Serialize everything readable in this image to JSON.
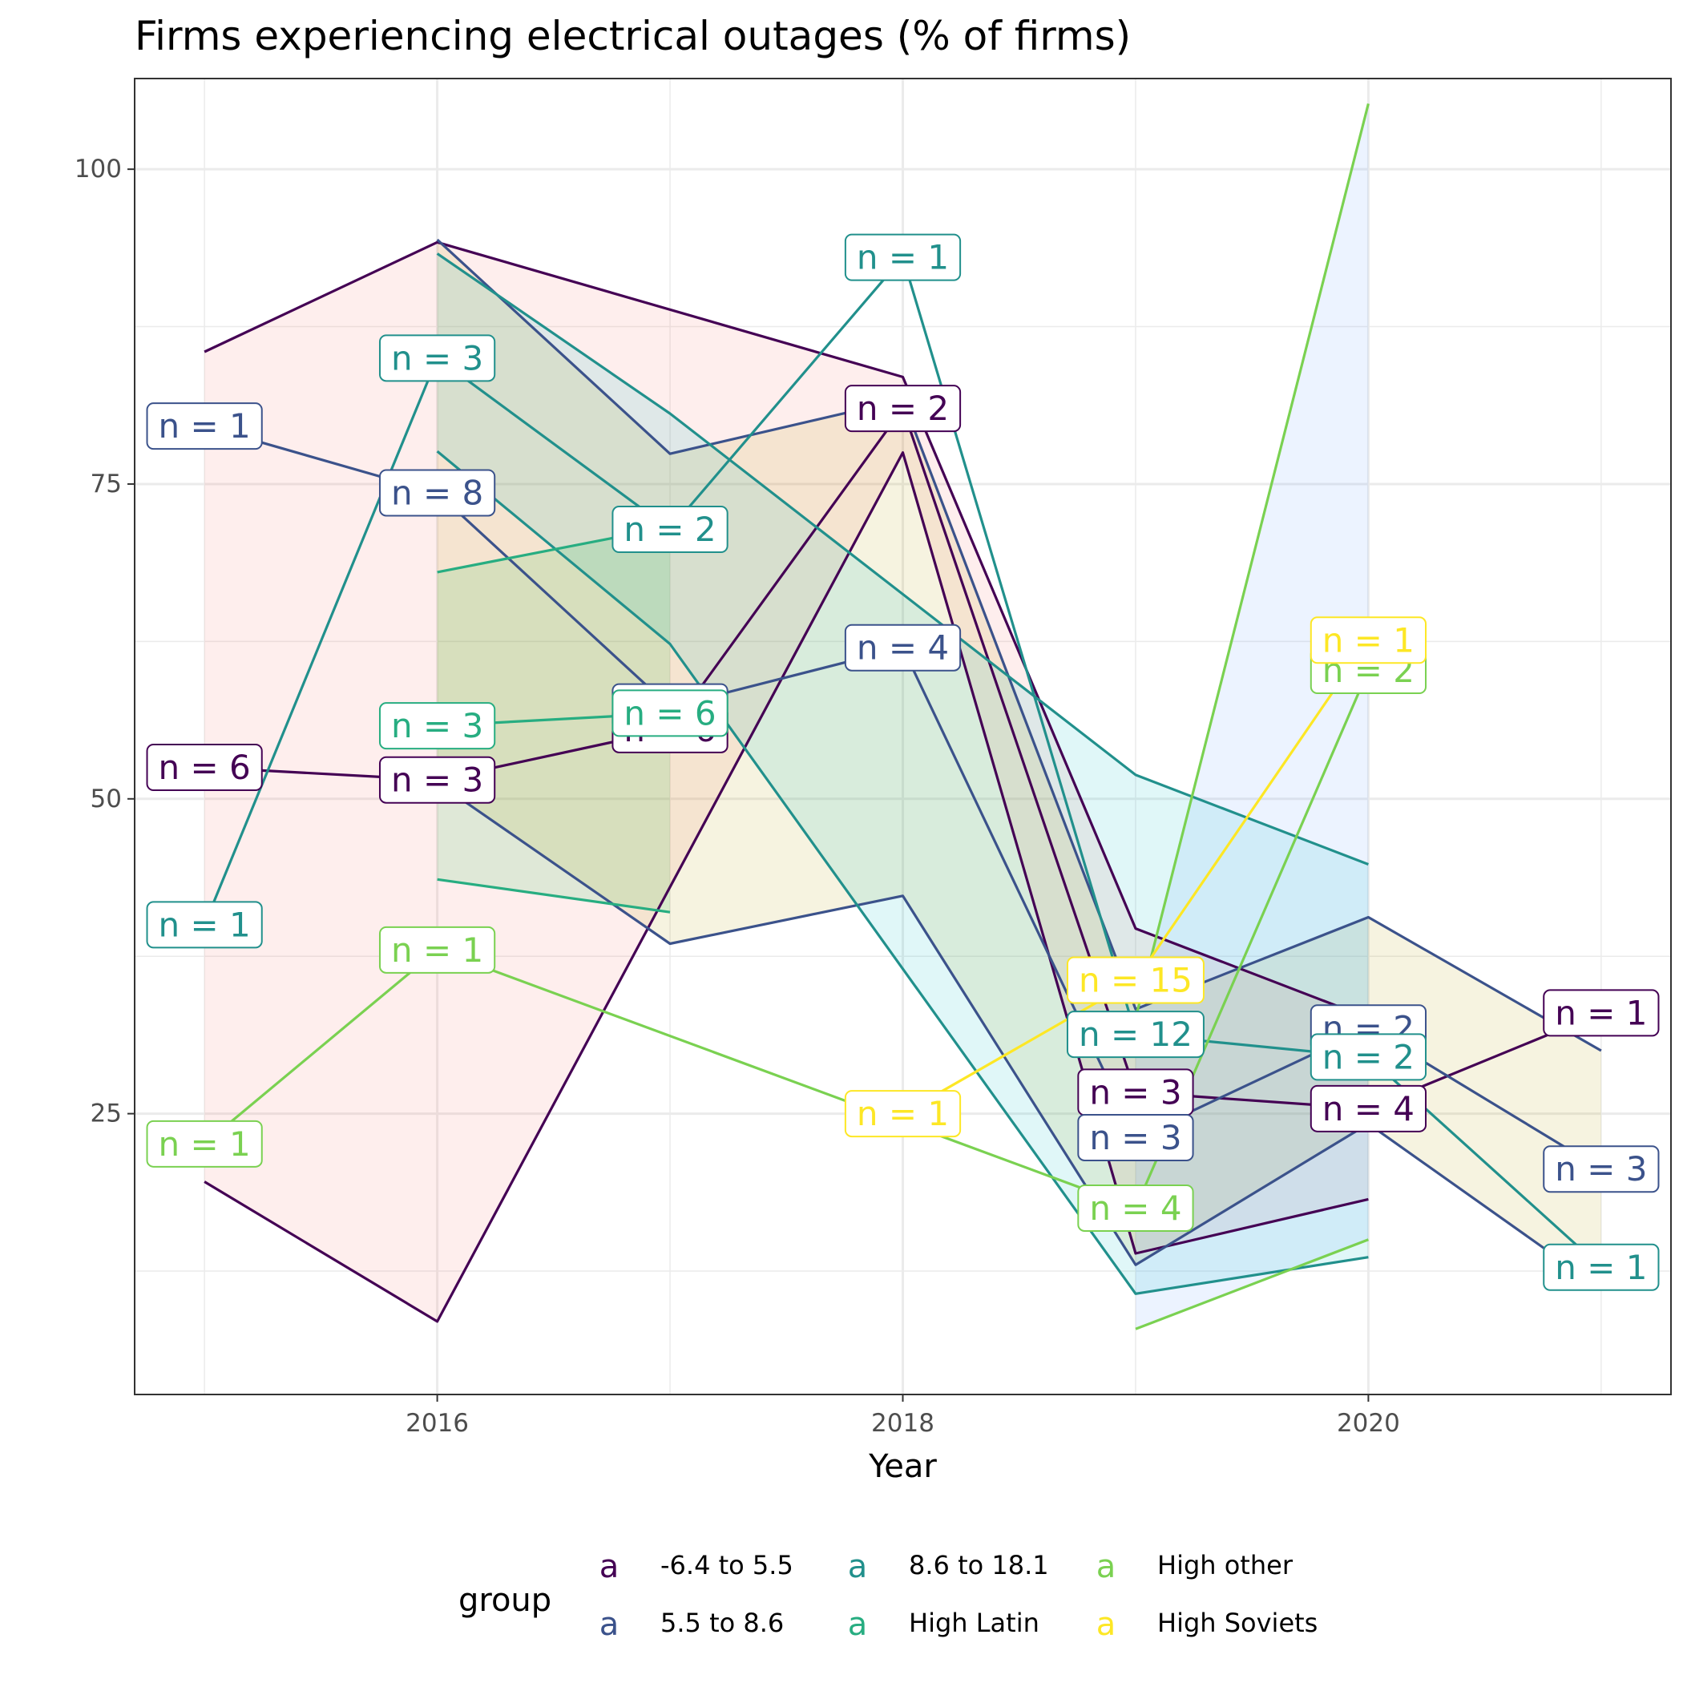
{
  "chart_data": {
    "type": "line",
    "title": "Firms experiencing electrical outages (% of firms)",
    "xlabel": "Year",
    "ylabel": "",
    "xlim": [
      2014.7,
      2021.3
    ],
    "ylim": [
      2.7,
      107.2
    ],
    "x_ticks": [
      2016,
      2018,
      2020
    ],
    "y_ticks": [
      25,
      50,
      75,
      100
    ],
    "grid": true,
    "legend": {
      "title": "group",
      "position": "bottom",
      "key_glyph": "a"
    },
    "series": [
      {
        "name": "-6.4 to 5.5",
        "color": "#440154",
        "points": [
          {
            "x": 2015,
            "y": 52.5,
            "label": "n = 6"
          },
          {
            "x": 2016,
            "y": 51.5,
            "label": "n = 3"
          },
          {
            "x": 2017,
            "y": 55.5,
            "label": "n = 6"
          },
          {
            "x": 2018,
            "y": 81,
            "label": "n = 2"
          },
          {
            "x": 2019,
            "y": 26.7,
            "label": "n = 3"
          },
          {
            "x": 2020,
            "y": 25.4,
            "label": "n = 4"
          },
          {
            "x": 2021,
            "y": 33,
            "label": "n = 1"
          }
        ],
        "lower": [
          {
            "x": 2015,
            "y": 19.6
          },
          {
            "x": 2016,
            "y": 8.5
          },
          {
            "x": 2018,
            "y": 77.5
          },
          {
            "x": 2019,
            "y": 13.9
          },
          {
            "x": 2020,
            "y": 18.2
          }
        ],
        "upper": [
          {
            "x": 2015,
            "y": 85.5
          },
          {
            "x": 2016,
            "y": 94.2
          },
          {
            "x": 2018,
            "y": 83.5
          },
          {
            "x": 2019,
            "y": 39.7
          },
          {
            "x": 2020,
            "y": 32.6
          }
        ],
        "fill": "#f8766d"
      },
      {
        "name": "5.5 to 8.6",
        "color": "#3b528b",
        "points": [
          {
            "x": 2015,
            "y": 79.6,
            "label": "n = 1"
          },
          {
            "x": 2016,
            "y": 74.3,
            "label": "n = 8"
          },
          {
            "x": 2017,
            "y": 57.3,
            "label": "n = 3"
          },
          {
            "x": 2018,
            "y": 62,
            "label": "n = 4"
          },
          {
            "x": 2019,
            "y": 23.1,
            "label": "n = 3"
          },
          {
            "x": 2020,
            "y": 31.8,
            "label": "n = 2"
          },
          {
            "x": 2021,
            "y": 20.6,
            "label": "n = 3"
          }
        ],
        "lower": [
          {
            "x": 2016,
            "y": 51.3
          },
          {
            "x": 2017,
            "y": 38.5
          },
          {
            "x": 2018,
            "y": 42.3
          },
          {
            "x": 2019,
            "y": 13
          },
          {
            "x": 2020,
            "y": 24.2
          },
          {
            "x": 2021,
            "y": 11.1
          }
        ],
        "upper": [
          {
            "x": 2016,
            "y": 94.4
          },
          {
            "x": 2017,
            "y": 77.4
          },
          {
            "x": 2018,
            "y": 81.7
          },
          {
            "x": 2019,
            "y": 33.3
          },
          {
            "x": 2020,
            "y": 40.6
          },
          {
            "x": 2021,
            "y": 30
          }
        ],
        "fill": "#b79f00"
      },
      {
        "name": "8.6 to 18.1",
        "color": "#21908c",
        "points": [
          {
            "x": 2015,
            "y": 40,
            "label": "n = 1"
          },
          {
            "x": 2016,
            "y": 85,
            "label": "n = 3"
          },
          {
            "x": 2017,
            "y": 71.4,
            "label": "n = 2"
          },
          {
            "x": 2018,
            "y": 93,
            "label": "n = 1"
          },
          {
            "x": 2019,
            "y": 31.3,
            "label": "n = 12"
          },
          {
            "x": 2020,
            "y": 29.5,
            "label": "n = 2"
          },
          {
            "x": 2021,
            "y": 12.8,
            "label": "n = 1"
          }
        ],
        "lower": [
          {
            "x": 2016,
            "y": 77.6
          },
          {
            "x": 2017,
            "y": 62.3
          },
          {
            "x": 2019,
            "y": 10.7
          },
          {
            "x": 2020,
            "y": 13.6
          }
        ],
        "upper": [
          {
            "x": 2016,
            "y": 93.3
          },
          {
            "x": 2017,
            "y": 80.6
          },
          {
            "x": 2019,
            "y": 51.9
          },
          {
            "x": 2020,
            "y": 44.8
          }
        ],
        "fill": "#00bfc4"
      },
      {
        "name": "High Latin",
        "color": "#27ad81",
        "points": [
          {
            "x": 2016,
            "y": 55.8,
            "label": "n = 3"
          },
          {
            "x": 2017,
            "y": 56.8,
            "label": "n = 6"
          }
        ],
        "lower": [
          {
            "x": 2016,
            "y": 43.6
          },
          {
            "x": 2017,
            "y": 41
          }
        ],
        "upper": [
          {
            "x": 2016,
            "y": 68
          },
          {
            "x": 2017,
            "y": 71.6
          }
        ],
        "fill": "#00ba38"
      },
      {
        "name": "High other",
        "color": "#7ad151",
        "points": [
          {
            "x": 2015,
            "y": 22.6,
            "label": "n = 1"
          },
          {
            "x": 2016,
            "y": 38,
            "label": "n = 1"
          },
          {
            "x": 2019,
            "y": 17.5,
            "label": "n = 4"
          },
          {
            "x": 2020,
            "y": 60.2,
            "label": "n = 2"
          }
        ],
        "lower": [
          {
            "x": 2019,
            "y": 7.9
          },
          {
            "x": 2020,
            "y": 15
          }
        ],
        "upper": [
          {
            "x": 2019,
            "y": 32.6
          },
          {
            "x": 2020,
            "y": 105.2
          }
        ],
        "fill": "#619cff"
      },
      {
        "name": "High Soviets",
        "color": "#fde725",
        "points": [
          {
            "x": 2018,
            "y": 25,
            "label": "n = 1"
          },
          {
            "x": 2019,
            "y": 35.6,
            "label": "n = 15"
          },
          {
            "x": 2020,
            "y": 62.6,
            "label": "n = 1"
          }
        ]
      }
    ]
  }
}
